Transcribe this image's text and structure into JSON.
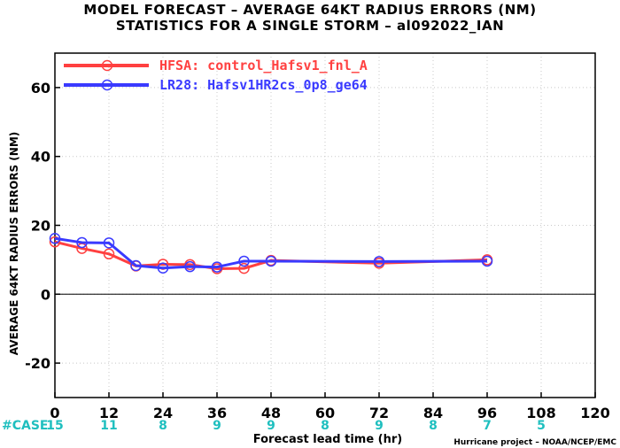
{
  "chart_data": {
    "type": "line",
    "title": "MODEL FORECAST – AVERAGE 64KT RADIUS ERRORS (NM)",
    "subtitle": "STATISTICS FOR A SINGLE STORM – al092022_IAN",
    "xlabel": "Forecast lead time (hr)",
    "ylabel": "AVERAGE 64KT RADIUS ERRORS (NM)",
    "xlim": [
      0,
      120
    ],
    "ylim": [
      -30,
      70
    ],
    "xticks": [
      0,
      12,
      24,
      36,
      48,
      60,
      72,
      84,
      96,
      108,
      120
    ],
    "yticks": [
      -20,
      0,
      20,
      40,
      60
    ],
    "legend_position": "top-left",
    "case_label": "#CASE",
    "cases": [
      {
        "x": 0,
        "n": "15"
      },
      {
        "x": 12,
        "n": "11"
      },
      {
        "x": 24,
        "n": "8"
      },
      {
        "x": 36,
        "n": "9"
      },
      {
        "x": 48,
        "n": "9"
      },
      {
        "x": 60,
        "n": "8"
      },
      {
        "x": 72,
        "n": "9"
      },
      {
        "x": 84,
        "n": "8"
      },
      {
        "x": 96,
        "n": "7"
      },
      {
        "x": 108,
        "n": "5"
      }
    ],
    "series": [
      {
        "name": "HFSA: control_Hafsv1_fnl_A",
        "color": "#ff4040",
        "points": [
          [
            0,
            15.2
          ],
          [
            6,
            13.3
          ],
          [
            12,
            11.7
          ],
          [
            18,
            8.2
          ],
          [
            24,
            8.7
          ],
          [
            30,
            8.6
          ],
          [
            36,
            7.4
          ],
          [
            42,
            7.5
          ],
          [
            48,
            9.8
          ],
          [
            72,
            9.0
          ],
          [
            96,
            10.0
          ]
        ]
      },
      {
        "name": "LR28: Hafsv1HR2cs_0p8_ge64",
        "color": "#3a3aff",
        "points": [
          [
            0,
            16.2
          ],
          [
            6,
            15.0
          ],
          [
            12,
            14.9
          ],
          [
            18,
            8.3
          ],
          [
            24,
            7.6
          ],
          [
            30,
            8.0
          ],
          [
            36,
            7.9
          ],
          [
            42,
            9.6
          ],
          [
            48,
            9.6
          ],
          [
            72,
            9.5
          ],
          [
            96,
            9.6
          ]
        ]
      }
    ],
    "credit": "Hurricane project – NOAA/NCEP/EMC"
  }
}
